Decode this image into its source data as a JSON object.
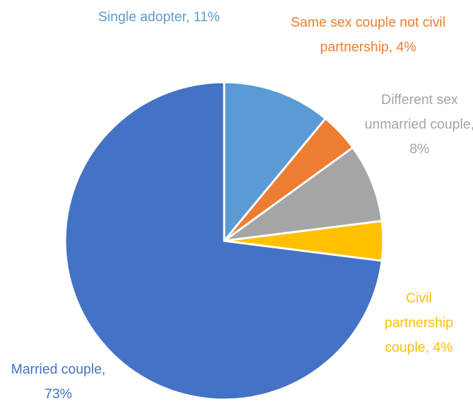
{
  "chart_data": {
    "type": "pie",
    "values": [
      11,
      4,
      8,
      4,
      73
    ],
    "value_labels": [
      "Single adopter, 11%",
      "Same sex couple not civil partnership, 4%",
      "Different sex unmarried couple, 8%",
      "Civil partnership couple, 4%",
      "Married couple, 73%"
    ],
    "colors": [
      "#5b9bd5",
      "#ed7d31",
      "#a5a5a5",
      "#ffc000",
      "#4472c4"
    ]
  }
}
